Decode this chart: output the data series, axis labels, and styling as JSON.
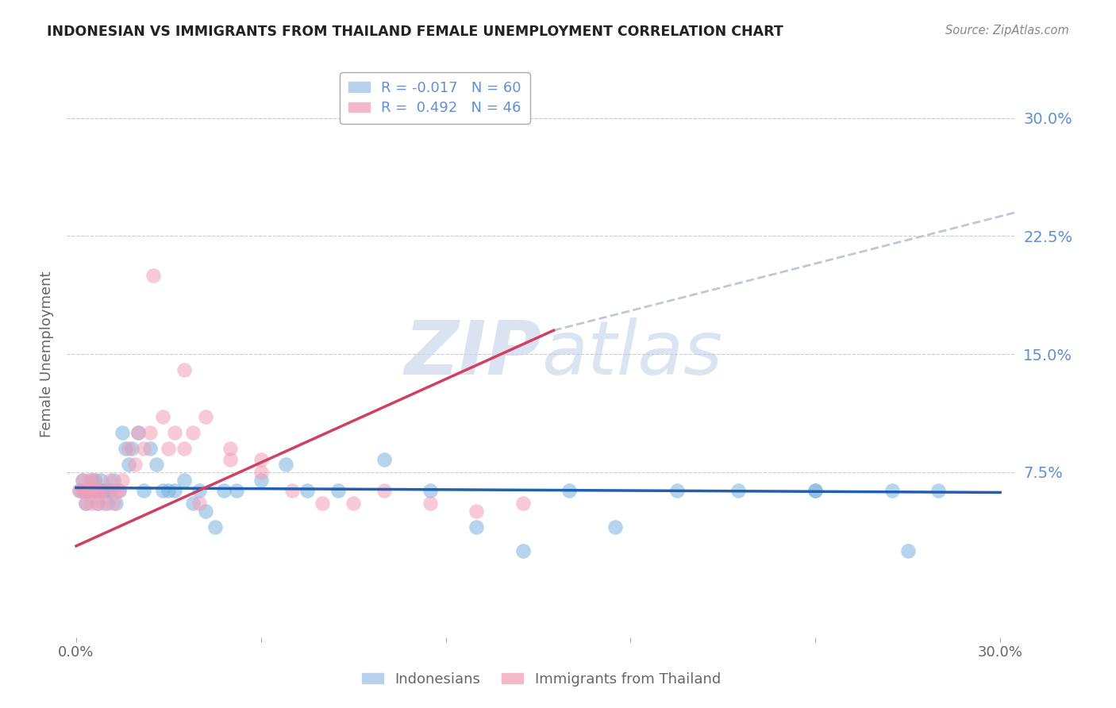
{
  "title": "INDONESIAN VS IMMIGRANTS FROM THAILAND FEMALE UNEMPLOYMENT CORRELATION CHART",
  "source": "Source: ZipAtlas.com",
  "ylabel": "Female Unemployment",
  "xlim": [
    -0.003,
    0.305
  ],
  "ylim": [
    -0.03,
    0.33
  ],
  "ytick_vals": [
    0.075,
    0.15,
    0.225,
    0.3
  ],
  "ytick_labels": [
    "7.5%",
    "15.0%",
    "22.5%",
    "30.0%"
  ],
  "xtick_vals": [
    0.0,
    0.06,
    0.12,
    0.18,
    0.24,
    0.3
  ],
  "xtick_labels": [
    "0.0%",
    "",
    "",
    "",
    "",
    "30.0%"
  ],
  "blue_scatter_color": "#7ab3de",
  "pink_scatter_color": "#f4a0b8",
  "blue_line_color": "#2060b0",
  "pink_line_color": "#d04060",
  "dashed_line_color": "#c0c8d8",
  "right_axis_color": "#6090d0",
  "watermark_color": "#ccd8ee",
  "grid_color": "#cccccc",
  "legend_border_color": "#aaaaaa",
  "title_color": "#222222",
  "source_color": "#888888",
  "label_color": "#666666",
  "indonesian_x": [
    0.001,
    0.002,
    0.002,
    0.003,
    0.003,
    0.003,
    0.004,
    0.004,
    0.005,
    0.005,
    0.005,
    0.006,
    0.006,
    0.007,
    0.007,
    0.008,
    0.008,
    0.009,
    0.009,
    0.01,
    0.01,
    0.011,
    0.012,
    0.013,
    0.014,
    0.015,
    0.016,
    0.017,
    0.018,
    0.02,
    0.022,
    0.024,
    0.026,
    0.028,
    0.03,
    0.032,
    0.035,
    0.038,
    0.04,
    0.042,
    0.045,
    0.048,
    0.052,
    0.06,
    0.068,
    0.075,
    0.085,
    0.1,
    0.115,
    0.13,
    0.145,
    0.16,
    0.175,
    0.195,
    0.215,
    0.24,
    0.265,
    0.28,
    0.24,
    0.27
  ],
  "indonesian_y": [
    0.063,
    0.063,
    0.07,
    0.063,
    0.063,
    0.055,
    0.063,
    0.063,
    0.063,
    0.07,
    0.063,
    0.07,
    0.063,
    0.055,
    0.063,
    0.063,
    0.07,
    0.063,
    0.063,
    0.055,
    0.063,
    0.063,
    0.07,
    0.055,
    0.063,
    0.1,
    0.09,
    0.08,
    0.09,
    0.1,
    0.063,
    0.09,
    0.08,
    0.063,
    0.063,
    0.063,
    0.07,
    0.055,
    0.063,
    0.05,
    0.04,
    0.063,
    0.063,
    0.07,
    0.08,
    0.063,
    0.063,
    0.083,
    0.063,
    0.04,
    0.025,
    0.063,
    0.04,
    0.063,
    0.063,
    0.063,
    0.063,
    0.063,
    0.063,
    0.025
  ],
  "thailand_x": [
    0.001,
    0.002,
    0.002,
    0.003,
    0.003,
    0.004,
    0.004,
    0.005,
    0.005,
    0.006,
    0.006,
    0.007,
    0.007,
    0.008,
    0.009,
    0.01,
    0.011,
    0.012,
    0.013,
    0.014,
    0.015,
    0.017,
    0.019,
    0.02,
    0.022,
    0.024,
    0.028,
    0.03,
    0.032,
    0.035,
    0.038,
    0.042,
    0.05,
    0.06,
    0.07,
    0.08,
    0.09,
    0.1,
    0.115,
    0.13,
    0.145,
    0.035,
    0.025,
    0.04,
    0.05,
    0.06
  ],
  "thailand_y": [
    0.063,
    0.063,
    0.07,
    0.055,
    0.063,
    0.063,
    0.07,
    0.063,
    0.055,
    0.063,
    0.07,
    0.055,
    0.063,
    0.063,
    0.055,
    0.063,
    0.07,
    0.055,
    0.063,
    0.063,
    0.07,
    0.09,
    0.08,
    0.1,
    0.09,
    0.1,
    0.11,
    0.09,
    0.1,
    0.09,
    0.1,
    0.11,
    0.09,
    0.083,
    0.063,
    0.055,
    0.055,
    0.063,
    0.055,
    0.05,
    0.055,
    0.14,
    0.2,
    0.055,
    0.083,
    0.075
  ],
  "indo_line_x": [
    0.0,
    0.3
  ],
  "indo_line_y": [
    0.065,
    0.062
  ],
  "thai_line_x": [
    0.0,
    0.155
  ],
  "thai_line_y": [
    0.028,
    0.165
  ],
  "dash_line_x": [
    0.155,
    0.305
  ],
  "dash_line_y": [
    0.165,
    0.24
  ]
}
